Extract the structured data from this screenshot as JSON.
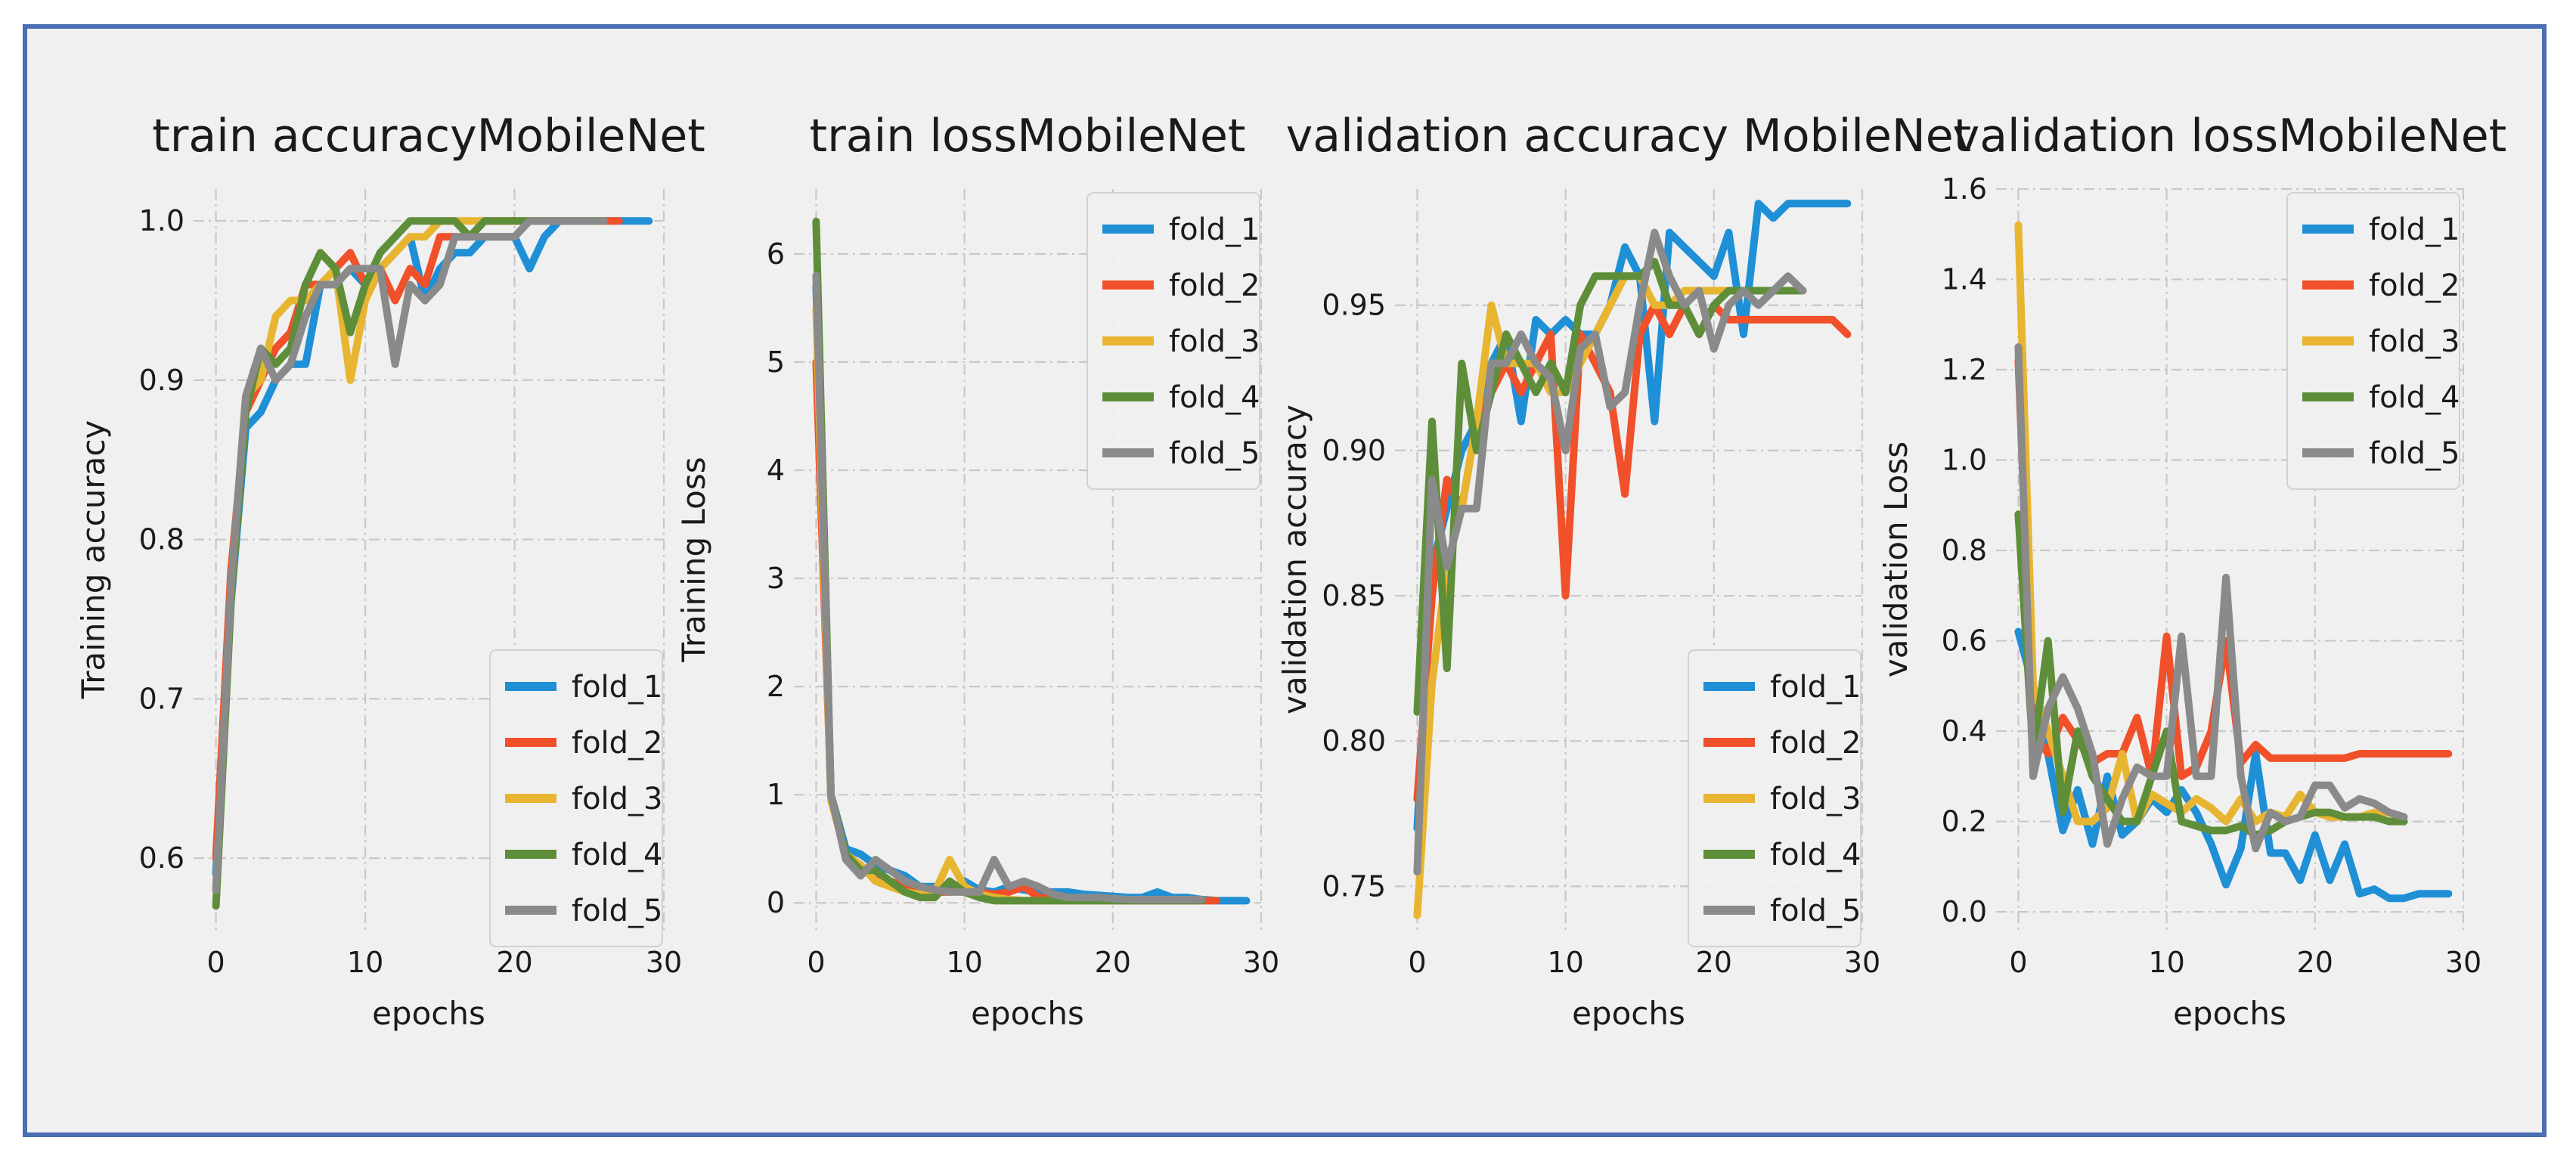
{
  "colors": {
    "fold_1": "#1f8fd6",
    "fold_2": "#f0502a",
    "fold_3": "#e8b530",
    "fold_4": "#5e8e3a",
    "fold_5": "#8a8a8a",
    "frame": "#4a6fb5",
    "background": "#f0f0f0"
  },
  "chart_data": [
    {
      "type": "line",
      "title": "train accuracyMobileNet",
      "xlabel": "epochs",
      "ylabel": "Training accuracy",
      "xlim": [
        -1.5,
        30
      ],
      "ylim": [
        0.555,
        1.02
      ],
      "xticks": [
        0,
        10,
        20,
        30
      ],
      "yticks": [
        0.6,
        0.7,
        0.8,
        0.9,
        1.0
      ],
      "ytick_labels": [
        "0.6",
        "0.7",
        "0.8",
        "0.9",
        "1.0"
      ],
      "legend": "lower-right",
      "series": [
        {
          "name": "fold_1",
          "values": [
            0.59,
            0.76,
            0.87,
            0.88,
            0.9,
            0.91,
            0.91,
            0.96,
            0.96,
            0.97,
            0.96,
            0.97,
            0.98,
            0.99,
            0.95,
            0.97,
            0.98,
            0.98,
            0.99,
            0.99,
            0.99,
            0.97,
            0.99,
            1.0,
            1.0,
            1.0,
            1.0,
            1.0,
            1.0,
            1.0
          ]
        },
        {
          "name": "fold_2",
          "values": [
            0.6,
            0.78,
            0.88,
            0.9,
            0.92,
            0.93,
            0.96,
            0.96,
            0.97,
            0.98,
            0.96,
            0.97,
            0.95,
            0.97,
            0.96,
            0.99,
            0.99,
            0.99,
            1.0,
            1.0,
            1.0,
            1.0,
            1.0,
            1.0,
            1.0,
            1.0,
            1.0,
            1.0
          ]
        },
        {
          "name": "fold_3",
          "values": [
            0.58,
            0.77,
            0.89,
            0.9,
            0.94,
            0.95,
            0.95,
            0.96,
            0.97,
            0.9,
            0.95,
            0.97,
            0.98,
            0.99,
            0.99,
            1.0,
            1.0,
            1.0,
            1.0,
            1.0,
            1.0,
            1.0,
            1.0,
            1.0,
            1.0,
            1.0,
            1.0
          ]
        },
        {
          "name": "fold_4",
          "values": [
            0.57,
            0.76,
            0.88,
            0.92,
            0.91,
            0.92,
            0.96,
            0.98,
            0.97,
            0.93,
            0.96,
            0.98,
            0.99,
            1.0,
            1.0,
            1.0,
            1.0,
            0.99,
            1.0,
            1.0,
            1.0,
            1.0,
            1.0,
            1.0,
            1.0,
            1.0,
            1.0
          ]
        },
        {
          "name": "fold_5",
          "values": [
            0.58,
            0.77,
            0.89,
            0.92,
            0.9,
            0.91,
            0.94,
            0.96,
            0.96,
            0.97,
            0.97,
            0.97,
            0.91,
            0.96,
            0.95,
            0.96,
            0.99,
            0.99,
            0.99,
            0.99,
            0.99,
            1.0,
            1.0,
            1.0,
            1.0,
            1.0,
            1.0
          ]
        }
      ]
    },
    {
      "type": "line",
      "title": "train lossMobileNet",
      "xlabel": "epochs",
      "ylabel": "Training Loss",
      "xlim": [
        -1.5,
        30
      ],
      "ylim": [
        -0.25,
        6.6
      ],
      "xticks": [
        0,
        10,
        20,
        30
      ],
      "yticks": [
        0,
        1,
        2,
        3,
        4,
        5,
        6
      ],
      "ytick_labels": [
        "0",
        "1",
        "2",
        "3",
        "4",
        "5",
        "6"
      ],
      "legend": "upper-right",
      "series": [
        {
          "name": "fold_1",
          "values": [
            5.7,
            1.0,
            0.5,
            0.45,
            0.35,
            0.3,
            0.25,
            0.15,
            0.15,
            0.12,
            0.2,
            0.12,
            0.1,
            0.15,
            0.12,
            0.1,
            0.1,
            0.1,
            0.08,
            0.07,
            0.06,
            0.05,
            0.05,
            0.1,
            0.05,
            0.05,
            0.03,
            0.02,
            0.02,
            0.02
          ]
        },
        {
          "name": "fold_2",
          "values": [
            5.0,
            1.0,
            0.45,
            0.3,
            0.25,
            0.2,
            0.15,
            0.1,
            0.1,
            0.1,
            0.12,
            0.1,
            0.08,
            0.1,
            0.15,
            0.05,
            0.05,
            0.05,
            0.03,
            0.03,
            0.02,
            0.02,
            0.02,
            0.02,
            0.02,
            0.02,
            0.02,
            0.02
          ]
        },
        {
          "name": "fold_3",
          "values": [
            5.5,
            0.95,
            0.45,
            0.35,
            0.2,
            0.15,
            0.1,
            0.08,
            0.1,
            0.4,
            0.15,
            0.08,
            0.05,
            0.03,
            0.02,
            0.02,
            0.02,
            0.02,
            0.02,
            0.02,
            0.02,
            0.02,
            0.02,
            0.02,
            0.02,
            0.02,
            0.02
          ]
        },
        {
          "name": "fold_4",
          "values": [
            6.3,
            1.0,
            0.45,
            0.3,
            0.3,
            0.2,
            0.1,
            0.05,
            0.05,
            0.2,
            0.1,
            0.05,
            0.02,
            0.02,
            0.02,
            0.02,
            0.02,
            0.02,
            0.02,
            0.02,
            0.02,
            0.02,
            0.02,
            0.02,
            0.02,
            0.02,
            0.02
          ]
        },
        {
          "name": "fold_5",
          "values": [
            5.8,
            1.0,
            0.4,
            0.25,
            0.4,
            0.3,
            0.2,
            0.15,
            0.12,
            0.1,
            0.1,
            0.1,
            0.4,
            0.15,
            0.2,
            0.15,
            0.08,
            0.05,
            0.05,
            0.05,
            0.04,
            0.03,
            0.03,
            0.03,
            0.03,
            0.03,
            0.03
          ]
        }
      ]
    },
    {
      "type": "line",
      "title": "validation accuracy MobileNet",
      "xlabel": "epochs",
      "ylabel": "validation accuracy",
      "xlim": [
        -1.5,
        30
      ],
      "ylim": [
        0.735,
        0.99
      ],
      "xticks": [
        0,
        10,
        20,
        30
      ],
      "yticks": [
        0.75,
        0.8,
        0.85,
        0.9,
        0.95
      ],
      "ytick_labels": [
        "0.75",
        "0.80",
        "0.85",
        "0.90",
        "0.95"
      ],
      "legend": "lower-right",
      "series": [
        {
          "name": "fold_1",
          "values": [
            0.77,
            0.86,
            0.88,
            0.9,
            0.91,
            0.93,
            0.94,
            0.91,
            0.945,
            0.94,
            0.945,
            0.94,
            0.94,
            0.95,
            0.97,
            0.96,
            0.91,
            0.975,
            0.97,
            0.965,
            0.96,
            0.975,
            0.94,
            0.985,
            0.98,
            0.985,
            0.985,
            0.985,
            0.985,
            0.985
          ]
        },
        {
          "name": "fold_2",
          "values": [
            0.78,
            0.85,
            0.89,
            0.88,
            0.91,
            0.92,
            0.93,
            0.92,
            0.93,
            0.94,
            0.85,
            0.94,
            0.93,
            0.92,
            0.885,
            0.94,
            0.95,
            0.94,
            0.95,
            0.94,
            0.95,
            0.945,
            0.945,
            0.945,
            0.945,
            0.945,
            0.945,
            0.945,
            0.945,
            0.94
          ]
        },
        {
          "name": "fold_3",
          "values": [
            0.74,
            0.82,
            0.86,
            0.88,
            0.91,
            0.95,
            0.93,
            0.93,
            0.93,
            0.92,
            0.92,
            0.93,
            0.94,
            0.95,
            0.96,
            0.96,
            0.95,
            0.95,
            0.955,
            0.955,
            0.955,
            0.955,
            0.955,
            0.955,
            0.955,
            0.955,
            0.955
          ]
        },
        {
          "name": "fold_4",
          "values": [
            0.81,
            0.91,
            0.825,
            0.93,
            0.9,
            0.92,
            0.94,
            0.93,
            0.92,
            0.93,
            0.92,
            0.95,
            0.96,
            0.96,
            0.96,
            0.96,
            0.965,
            0.95,
            0.95,
            0.94,
            0.95,
            0.955,
            0.955,
            0.955,
            0.955,
            0.955,
            0.955
          ]
        },
        {
          "name": "fold_5",
          "values": [
            0.755,
            0.89,
            0.86,
            0.88,
            0.88,
            0.93,
            0.93,
            0.94,
            0.93,
            0.925,
            0.9,
            0.935,
            0.94,
            0.915,
            0.92,
            0.95,
            0.975,
            0.96,
            0.95,
            0.955,
            0.935,
            0.95,
            0.955,
            0.95,
            0.955,
            0.96,
            0.955
          ]
        }
      ]
    },
    {
      "type": "line",
      "title": "validation lossMobileNet",
      "xlabel": "epochs",
      "ylabel": "validation Loss",
      "xlim": [
        -1.5,
        30
      ],
      "ylim": [
        -0.04,
        1.6
      ],
      "xticks": [
        0,
        10,
        20,
        30
      ],
      "yticks": [
        0.0,
        0.2,
        0.4,
        0.6,
        0.8,
        1.0,
        1.2,
        1.4,
        1.6
      ],
      "ytick_labels": [
        "0.0",
        "0.2",
        "0.4",
        "0.6",
        "0.8",
        "1.0",
        "1.2",
        "1.4",
        "1.6"
      ],
      "legend": "upper-right",
      "series": [
        {
          "name": "fold_1",
          "values": [
            0.62,
            0.5,
            0.35,
            0.18,
            0.27,
            0.15,
            0.3,
            0.17,
            0.2,
            0.25,
            0.22,
            0.27,
            0.22,
            0.15,
            0.06,
            0.14,
            0.35,
            0.13,
            0.13,
            0.07,
            0.17,
            0.07,
            0.15,
            0.04,
            0.05,
            0.03,
            0.03,
            0.04,
            0.04,
            0.04
          ]
        },
        {
          "name": "fold_2",
          "values": [
            1.22,
            0.4,
            0.35,
            0.43,
            0.38,
            0.33,
            0.35,
            0.35,
            0.43,
            0.3,
            0.61,
            0.3,
            0.32,
            0.4,
            0.6,
            0.33,
            0.37,
            0.34,
            0.34,
            0.34,
            0.34,
            0.34,
            0.34,
            0.35,
            0.35,
            0.35,
            0.35,
            0.35,
            0.35,
            0.35
          ]
        },
        {
          "name": "fold_3",
          "values": [
            1.52,
            0.5,
            0.4,
            0.3,
            0.2,
            0.2,
            0.23,
            0.35,
            0.2,
            0.26,
            0.24,
            0.22,
            0.25,
            0.23,
            0.2,
            0.25,
            0.2,
            0.22,
            0.21,
            0.26,
            0.22,
            0.21,
            0.21,
            0.21,
            0.22,
            0.22,
            0.2
          ]
        },
        {
          "name": "fold_4",
          "values": [
            0.88,
            0.35,
            0.6,
            0.22,
            0.4,
            0.3,
            0.25,
            0.2,
            0.2,
            0.3,
            0.4,
            0.2,
            0.19,
            0.18,
            0.18,
            0.19,
            0.17,
            0.18,
            0.2,
            0.21,
            0.22,
            0.22,
            0.21,
            0.21,
            0.21,
            0.2,
            0.2
          ]
        },
        {
          "name": "fold_5",
          "values": [
            1.25,
            0.3,
            0.45,
            0.52,
            0.45,
            0.35,
            0.15,
            0.25,
            0.32,
            0.3,
            0.3,
            0.61,
            0.3,
            0.3,
            0.74,
            0.3,
            0.14,
            0.22,
            0.2,
            0.21,
            0.28,
            0.28,
            0.23,
            0.25,
            0.24,
            0.22,
            0.21
          ]
        }
      ]
    }
  ]
}
